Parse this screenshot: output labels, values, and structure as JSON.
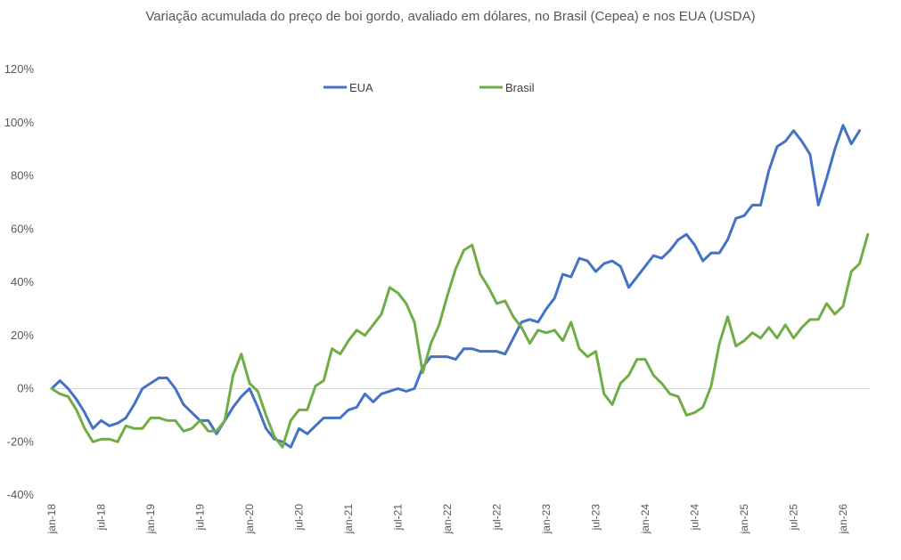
{
  "chart_data": {
    "type": "line",
    "title": "Variação acumulada do preço de boi gordo, avaliado em dólares, no Brasil (Cepea) e nos EUA (USDA)",
    "xlabel": "",
    "ylabel": "",
    "ylim": [
      -40,
      120
    ],
    "y_ticks": [
      -40,
      -20,
      0,
      20,
      40,
      60,
      80,
      100,
      120
    ],
    "y_tick_labels": [
      "-40%",
      "-20%",
      "0%",
      "20%",
      "40%",
      "60%",
      "80%",
      "100%",
      "120%"
    ],
    "x_tick_labels": [
      "jan-18",
      "jul-18",
      "jan-19",
      "jul-19",
      "jan-20",
      "jul-20",
      "jan-21",
      "jul-21",
      "jan-22",
      "jul-22",
      "jan-23",
      "jul-23",
      "jan-24",
      "jul-24",
      "jan-25",
      "jul-25",
      "jan-26"
    ],
    "x_tick_period": 6,
    "legend_position": "top-center",
    "grid": false,
    "series": [
      {
        "name": "EUA",
        "color": "#4472C4",
        "values": [
          0,
          3,
          0,
          -4,
          -9,
          -15,
          -12,
          -14,
          -13,
          -11,
          -6,
          0,
          2,
          4,
          4,
          0,
          -6,
          -9,
          -12,
          -12,
          -17,
          -12,
          -7,
          -3,
          0,
          -7,
          -15,
          -19,
          -20,
          -22,
          -15,
          -17,
          -14,
          -11,
          -11,
          -11,
          -8,
          -7,
          -2,
          -5,
          -2,
          -1,
          0,
          -1,
          0,
          8,
          12,
          12,
          12,
          11,
          15,
          15,
          14,
          14,
          14,
          13,
          19,
          25,
          26,
          25,
          30,
          34,
          43,
          42,
          49,
          48,
          44,
          47,
          48,
          46,
          38,
          42,
          46,
          50,
          49,
          52,
          56,
          58,
          54,
          48,
          51,
          51,
          56,
          64,
          65,
          69,
          69,
          82,
          91,
          93,
          97,
          93,
          88,
          69,
          79,
          90,
          99,
          92,
          97
        ]
      },
      {
        "name": "Brasil",
        "color": "#70AD47",
        "values": [
          0,
          -2,
          -3,
          -8,
          -15,
          -20,
          -19,
          -19,
          -20,
          -14,
          -15,
          -15,
          -11,
          -11,
          -12,
          -12,
          -16,
          -15,
          -12,
          -16,
          -16,
          -12,
          5,
          13,
          2,
          -1,
          -10,
          -18,
          -22,
          -12,
          -8,
          -8,
          1,
          3,
          15,
          13,
          18,
          22,
          20,
          24,
          28,
          38,
          36,
          32,
          25,
          6,
          17,
          24,
          35,
          45,
          52,
          54,
          43,
          38,
          32,
          33,
          27,
          23,
          17,
          22,
          21,
          22,
          18,
          25,
          15,
          12,
          14,
          -2,
          -6,
          2,
          5,
          11,
          11,
          5,
          2,
          -2,
          -3,
          -10,
          -9,
          -7,
          1,
          17,
          27,
          16,
          18,
          21,
          19,
          23,
          19,
          24,
          19,
          23,
          26,
          26,
          32,
          28,
          31,
          44,
          47,
          58
        ]
      }
    ]
  }
}
